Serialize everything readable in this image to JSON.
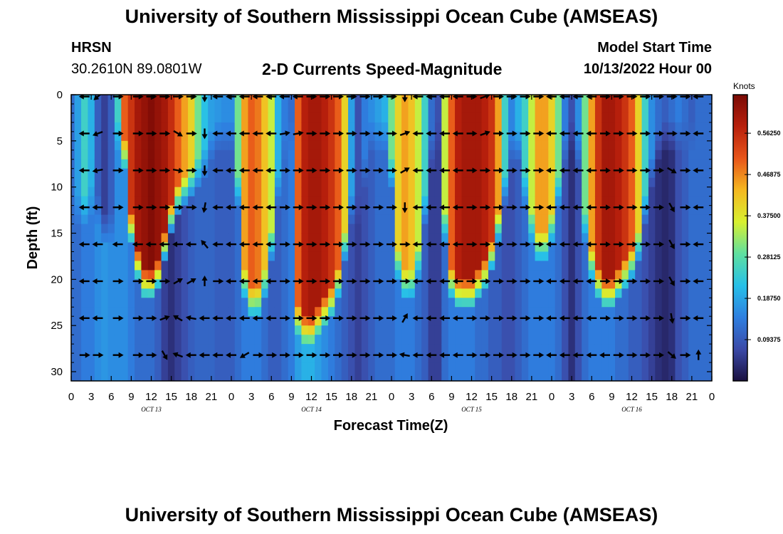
{
  "header": {
    "title": "University of Southern Mississippi Ocean Cube (AMSEAS)",
    "station": "HRSN",
    "coords": "30.2610N  89.0801W",
    "subtitle": "2-D Currents Speed-Magnitude",
    "start_label": "Model Start Time",
    "start_value": "10/13/2022 Hour 00"
  },
  "footer": {
    "title": "University of Southern Mississippi Ocean Cube (AMSEAS)"
  },
  "colors": {
    "scale": [
      "#1a1040",
      "#3b4aa8",
      "#2e7fe0",
      "#27c0e8",
      "#5fe0a0",
      "#d8f030",
      "#f5b820",
      "#e8551a",
      "#b8200c",
      "#7a0a05"
    ]
  },
  "chart_data": {
    "type": "heatmap",
    "title": "2-D Currents Speed-Magnitude",
    "xlabel": "Forecast Time(Z)",
    "ylabel": "Depth (ft)",
    "xlim": [
      0,
      96
    ],
    "ylim": [
      0,
      31
    ],
    "x_ticks": [
      0,
      3,
      6,
      9,
      12,
      15,
      18,
      21,
      24,
      27,
      30,
      33,
      36,
      39,
      42,
      45,
      48,
      51,
      54,
      57,
      60,
      63,
      66,
      69,
      72,
      75,
      78,
      81,
      84,
      87,
      90,
      93,
      96
    ],
    "x_tick_labels": [
      "0",
      "3",
      "6",
      "9",
      "12",
      "15",
      "18",
      "21",
      "0",
      "3",
      "6",
      "9",
      "12",
      "15",
      "18",
      "21",
      "0",
      "3",
      "6",
      "9",
      "12",
      "15",
      "18",
      "21",
      "0",
      "3",
      "6",
      "9",
      "12",
      "15",
      "18",
      "21",
      "0"
    ],
    "y_ticks": [
      0,
      5,
      10,
      15,
      20,
      25,
      30
    ],
    "y_tick_labels": [
      "0",
      "5",
      "10",
      "15",
      "20",
      "25",
      "30"
    ],
    "day_labels": [
      {
        "x": 12,
        "label": "OCT 13"
      },
      {
        "x": 36,
        "label": "OCT 14"
      },
      {
        "x": 60,
        "label": "OCT 15"
      },
      {
        "x": 84,
        "label": "OCT 16"
      }
    ],
    "colorbar": {
      "label": "Knots",
      "range": [
        0,
        0.65
      ],
      "ticks": [
        0.09375,
        0.1875,
        0.28125,
        0.375,
        0.46875,
        0.5625
      ],
      "tick_labels": [
        "0.09375",
        "0.18750",
        "0.28125",
        "0.37500",
        "0.46875",
        "0.56250"
      ]
    },
    "columns": [
      {
        "t": 0,
        "top": 0.12,
        "bottom": 0.12,
        "ext": 0
      },
      {
        "t": 1,
        "top": 0.18,
        "bottom": 0.12,
        "ext": 10
      },
      {
        "t": 2,
        "top": 0.25,
        "bottom": 0.14,
        "ext": 10
      },
      {
        "t": 3,
        "top": 0.2,
        "bottom": 0.14,
        "ext": 9
      },
      {
        "t": 4,
        "top": 0.1,
        "bottom": 0.16,
        "ext": 10
      },
      {
        "t": 5,
        "top": 0.06,
        "bottom": 0.17,
        "ext": 12
      },
      {
        "t": 6,
        "top": 0.1,
        "bottom": 0.16,
        "ext": 12
      },
      {
        "t": 7,
        "top": 0.25,
        "bottom": 0.16,
        "ext": 2
      },
      {
        "t": 8,
        "top": 0.5,
        "bottom": 0.16,
        "ext": 4
      },
      {
        "t": 9,
        "top": 0.55,
        "bottom": 0.14,
        "ext": 12
      },
      {
        "t": 10,
        "top": 0.6,
        "bottom": 0.12,
        "ext": 16
      },
      {
        "t": 11,
        "top": 0.62,
        "bottom": 0.12,
        "ext": 18
      },
      {
        "t": 12,
        "top": 0.64,
        "bottom": 0.12,
        "ext": 18
      },
      {
        "t": 13,
        "top": 0.62,
        "bottom": 0.1,
        "ext": 17
      },
      {
        "t": 14,
        "top": 0.6,
        "bottom": 0.06,
        "ext": 14
      },
      {
        "t": 15,
        "top": 0.56,
        "bottom": 0.04,
        "ext": 11
      },
      {
        "t": 16,
        "top": 0.5,
        "bottom": 0.06,
        "ext": 9
      },
      {
        "t": 17,
        "top": 0.45,
        "bottom": 0.08,
        "ext": 8
      },
      {
        "t": 18,
        "top": 0.4,
        "bottom": 0.1,
        "ext": 7
      },
      {
        "t": 19,
        "top": 0.3,
        "bottom": 0.11,
        "ext": 6
      },
      {
        "t": 20,
        "top": 0.22,
        "bottom": 0.11,
        "ext": 5
      },
      {
        "t": 21,
        "top": 0.18,
        "bottom": 0.11,
        "ext": 3
      },
      {
        "t": 22,
        "top": 0.17,
        "bottom": 0.1,
        "ext": 2
      },
      {
        "t": 23,
        "top": 0.16,
        "bottom": 0.1,
        "ext": 2
      },
      {
        "t": 24,
        "top": 0.16,
        "bottom": 0.1,
        "ext": 2
      },
      {
        "t": 25,
        "top": 0.3,
        "bottom": 0.12,
        "ext": 8
      },
      {
        "t": 26,
        "top": 0.45,
        "bottom": 0.14,
        "ext": 18
      },
      {
        "t": 27,
        "top": 0.5,
        "bottom": 0.14,
        "ext": 20
      },
      {
        "t": 28,
        "top": 0.48,
        "bottom": 0.14,
        "ext": 20
      },
      {
        "t": 29,
        "top": 0.42,
        "bottom": 0.12,
        "ext": 18
      },
      {
        "t": 30,
        "top": 0.35,
        "bottom": 0.1,
        "ext": 14
      },
      {
        "t": 31,
        "top": 0.2,
        "bottom": 0.1,
        "ext": 8
      },
      {
        "t": 32,
        "top": 0.14,
        "bottom": 0.12,
        "ext": 3
      },
      {
        "t": 33,
        "top": 0.12,
        "bottom": 0.14,
        "ext": 2
      },
      {
        "t": 34,
        "top": 0.5,
        "bottom": 0.18,
        "ext": 22
      },
      {
        "t": 35,
        "top": 0.58,
        "bottom": 0.2,
        "ext": 23
      },
      {
        "t": 36,
        "top": 0.6,
        "bottom": 0.2,
        "ext": 23
      },
      {
        "t": 37,
        "top": 0.6,
        "bottom": 0.18,
        "ext": 22
      },
      {
        "t": 38,
        "top": 0.58,
        "bottom": 0.16,
        "ext": 21
      },
      {
        "t": 39,
        "top": 0.55,
        "bottom": 0.14,
        "ext": 20
      },
      {
        "t": 40,
        "top": 0.5,
        "bottom": 0.12,
        "ext": 18
      },
      {
        "t": 41,
        "top": 0.4,
        "bottom": 0.1,
        "ext": 14
      },
      {
        "t": 42,
        "top": 0.18,
        "bottom": 0.08,
        "ext": 10
      },
      {
        "t": 43,
        "top": 0.08,
        "bottom": 0.06,
        "ext": 10
      },
      {
        "t": 44,
        "top": 0.14,
        "bottom": 0.08,
        "ext": 6
      },
      {
        "t": 45,
        "top": 0.16,
        "bottom": 0.1,
        "ext": 2
      },
      {
        "t": 46,
        "top": 0.18,
        "bottom": 0.12,
        "ext": 2
      },
      {
        "t": 47,
        "top": 0.2,
        "bottom": 0.12,
        "ext": 2
      },
      {
        "t": 48,
        "top": 0.3,
        "bottom": 0.12,
        "ext": 6
      },
      {
        "t": 49,
        "top": 0.4,
        "bottom": 0.14,
        "ext": 16
      },
      {
        "t": 50,
        "top": 0.45,
        "bottom": 0.14,
        "ext": 18
      },
      {
        "t": 51,
        "top": 0.42,
        "bottom": 0.14,
        "ext": 18
      },
      {
        "t": 52,
        "top": 0.35,
        "bottom": 0.12,
        "ext": 16
      },
      {
        "t": 53,
        "top": 0.25,
        "bottom": 0.1,
        "ext": 10
      },
      {
        "t": 54,
        "top": 0.12,
        "bottom": 0.06,
        "ext": 4
      },
      {
        "t": 55,
        "top": 0.08,
        "bottom": 0.06,
        "ext": 2
      },
      {
        "t": 56,
        "top": 0.35,
        "bottom": 0.12,
        "ext": 12
      },
      {
        "t": 57,
        "top": 0.5,
        "bottom": 0.14,
        "ext": 18
      },
      {
        "t": 58,
        "top": 0.58,
        "bottom": 0.14,
        "ext": 19
      },
      {
        "t": 59,
        "top": 0.6,
        "bottom": 0.14,
        "ext": 19
      },
      {
        "t": 60,
        "top": 0.6,
        "bottom": 0.14,
        "ext": 19
      },
      {
        "t": 61,
        "top": 0.6,
        "bottom": 0.12,
        "ext": 18
      },
      {
        "t": 62,
        "top": 0.58,
        "bottom": 0.12,
        "ext": 17
      },
      {
        "t": 63,
        "top": 0.55,
        "bottom": 0.1,
        "ext": 15
      },
      {
        "t": 64,
        "top": 0.45,
        "bottom": 0.1,
        "ext": 12
      },
      {
        "t": 65,
        "top": 0.25,
        "bottom": 0.08,
        "ext": 8
      },
      {
        "t": 66,
        "top": 0.15,
        "bottom": 0.08,
        "ext": 4
      },
      {
        "t": 67,
        "top": 0.2,
        "bottom": 0.1,
        "ext": 3
      },
      {
        "t": 68,
        "top": 0.25,
        "bottom": 0.12,
        "ext": 8
      },
      {
        "t": 69,
        "top": 0.35,
        "bottom": 0.14,
        "ext": 12
      },
      {
        "t": 70,
        "top": 0.45,
        "bottom": 0.14,
        "ext": 14
      },
      {
        "t": 71,
        "top": 0.45,
        "bottom": 0.14,
        "ext": 14
      },
      {
        "t": 72,
        "top": 0.4,
        "bottom": 0.14,
        "ext": 12
      },
      {
        "t": 73,
        "top": 0.3,
        "bottom": 0.12,
        "ext": 8
      },
      {
        "t": 74,
        "top": 0.14,
        "bottom": 0.08,
        "ext": 4
      },
      {
        "t": 75,
        "top": 0.08,
        "bottom": 0.04,
        "ext": 2
      },
      {
        "t": 76,
        "top": 0.16,
        "bottom": 0.08,
        "ext": 4
      },
      {
        "t": 77,
        "top": 0.3,
        "bottom": 0.12,
        "ext": 12
      },
      {
        "t": 78,
        "top": 0.45,
        "bottom": 0.14,
        "ext": 16
      },
      {
        "t": 79,
        "top": 0.55,
        "bottom": 0.14,
        "ext": 18
      },
      {
        "t": 80,
        "top": 0.6,
        "bottom": 0.14,
        "ext": 19
      },
      {
        "t": 81,
        "top": 0.6,
        "bottom": 0.14,
        "ext": 19
      },
      {
        "t": 82,
        "top": 0.58,
        "bottom": 0.12,
        "ext": 18
      },
      {
        "t": 83,
        "top": 0.55,
        "bottom": 0.12,
        "ext": 17
      },
      {
        "t": 84,
        "top": 0.5,
        "bottom": 0.1,
        "ext": 16
      },
      {
        "t": 85,
        "top": 0.4,
        "bottom": 0.1,
        "ext": 14
      },
      {
        "t": 86,
        "top": 0.25,
        "bottom": 0.08,
        "ext": 10
      },
      {
        "t": 87,
        "top": 0.16,
        "bottom": 0.06,
        "ext": 6
      },
      {
        "t": 88,
        "top": 0.12,
        "bottom": 0.04,
        "ext": 3
      },
      {
        "t": 89,
        "top": 0.1,
        "bottom": 0.03,
        "ext": 2
      },
      {
        "t": 90,
        "top": 0.12,
        "bottom": 0.04,
        "ext": 2
      },
      {
        "t": 91,
        "top": 0.14,
        "bottom": 0.08,
        "ext": 2
      },
      {
        "t": 92,
        "top": 0.12,
        "bottom": 0.1,
        "ext": 2
      },
      {
        "t": 93,
        "top": 0.1,
        "bottom": 0.12,
        "ext": 2
      },
      {
        "t": 94,
        "top": 0.12,
        "bottom": 0.12,
        "ext": 2
      },
      {
        "t": 95,
        "top": 0.12,
        "bottom": 0.12,
        "ext": 2
      },
      {
        "t": 96,
        "top": 0.12,
        "bottom": 0.12,
        "ext": 2
      }
    ],
    "vectors": {
      "depths": [
        0.2,
        4.2,
        8.2,
        12.2,
        16.2,
        20.2,
        24.2,
        28.2
      ],
      "times": [
        2,
        4,
        7,
        10,
        12,
        14,
        16,
        18,
        20,
        22,
        24,
        26,
        28,
        30,
        32,
        34,
        36,
        38,
        40,
        42,
        44,
        46,
        48,
        50,
        52,
        54,
        56,
        58,
        60,
        62,
        64,
        66,
        68,
        70,
        72,
        74,
        76,
        78,
        80,
        82,
        84,
        86,
        88,
        90,
        92,
        94
      ],
      "angle_deg": [
        [
          180,
          220,
          0,
          0,
          0,
          0,
          0,
          0,
          -90,
          180,
          180,
          180,
          180,
          180,
          180,
          180,
          0,
          0,
          0,
          0,
          0,
          0,
          0,
          -90,
          180,
          180,
          180,
          180,
          0,
          20,
          0,
          0,
          0,
          0,
          180,
          180,
          180,
          180,
          0,
          0,
          0,
          0,
          0,
          0,
          0,
          180
        ],
        [
          180,
          200,
          0,
          0,
          0,
          0,
          -30,
          0,
          -90,
          180,
          180,
          180,
          180,
          180,
          10,
          10,
          0,
          0,
          0,
          0,
          0,
          0,
          0,
          20,
          180,
          180,
          180,
          180,
          0,
          20,
          0,
          0,
          0,
          0,
          180,
          180,
          180,
          180,
          0,
          0,
          0,
          0,
          0,
          0,
          0,
          180
        ],
        [
          180,
          190,
          0,
          0,
          0,
          0,
          -10,
          0,
          -90,
          180,
          180,
          180,
          180,
          180,
          0,
          0,
          0,
          0,
          0,
          0,
          0,
          0,
          0,
          30,
          180,
          180,
          180,
          180,
          0,
          0,
          0,
          0,
          0,
          0,
          180,
          180,
          180,
          180,
          0,
          0,
          0,
          0,
          0,
          -30,
          0,
          180
        ],
        [
          180,
          180,
          0,
          0,
          0,
          0,
          0,
          0,
          -100,
          180,
          180,
          180,
          180,
          180,
          0,
          0,
          0,
          0,
          0,
          0,
          0,
          0,
          0,
          -90,
          180,
          180,
          180,
          180,
          0,
          0,
          0,
          0,
          0,
          0,
          180,
          180,
          180,
          180,
          0,
          0,
          0,
          0,
          0,
          -60,
          0,
          180
        ],
        [
          180,
          180,
          180,
          180,
          180,
          180,
          180,
          180,
          130,
          180,
          180,
          180,
          180,
          180,
          0,
          0,
          0,
          0,
          0,
          0,
          0,
          0,
          0,
          0,
          180,
          180,
          180,
          180,
          0,
          0,
          0,
          0,
          0,
          0,
          180,
          180,
          180,
          180,
          0,
          0,
          0,
          0,
          0,
          -60,
          0,
          180
        ],
        [
          180,
          180,
          0,
          0,
          0,
          0,
          30,
          30,
          90,
          0,
          180,
          180,
          180,
          180,
          0,
          0,
          0,
          0,
          0,
          0,
          0,
          0,
          0,
          0,
          180,
          180,
          180,
          180,
          0,
          0,
          0,
          0,
          0,
          0,
          180,
          180,
          180,
          180,
          0,
          0,
          0,
          0,
          0,
          -60,
          0,
          180
        ],
        [
          180,
          180,
          0,
          0,
          0,
          20,
          150,
          170,
          180,
          180,
          180,
          180,
          180,
          180,
          0,
          0,
          0,
          0,
          0,
          0,
          0,
          0,
          0,
          60,
          180,
          180,
          180,
          180,
          0,
          0,
          0,
          0,
          0,
          0,
          180,
          180,
          180,
          180,
          0,
          0,
          0,
          0,
          0,
          -80,
          0,
          180
        ],
        [
          0,
          0,
          0,
          0,
          0,
          -60,
          160,
          180,
          180,
          180,
          180,
          210,
          0,
          0,
          0,
          0,
          0,
          0,
          0,
          0,
          0,
          0,
          0,
          170,
          180,
          180,
          180,
          180,
          0,
          0,
          0,
          0,
          0,
          0,
          180,
          180,
          180,
          180,
          180,
          0,
          0,
          0,
          0,
          -40,
          0,
          90
        ]
      ]
    }
  }
}
